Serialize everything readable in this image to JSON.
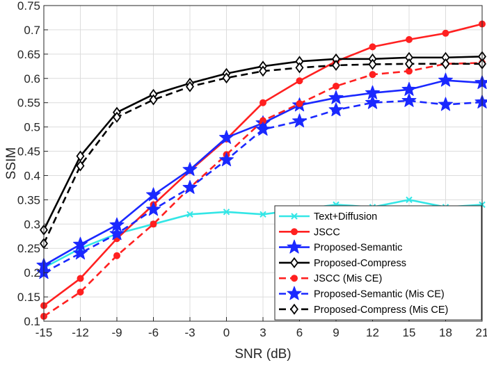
{
  "chart_data": {
    "type": "line",
    "title": "",
    "xlabel": "SNR (dB)",
    "ylabel": "SSIM",
    "xlim": [
      -15,
      21
    ],
    "ylim": [
      0.1,
      0.75
    ],
    "xticks": [
      -15,
      -12,
      -9,
      -6,
      -3,
      0,
      3,
      6,
      9,
      12,
      15,
      18,
      21
    ],
    "yticks": [
      0.1,
      0.15,
      0.2,
      0.25,
      0.3,
      0.35,
      0.4,
      0.45,
      0.5,
      0.55,
      0.6,
      0.65,
      0.7,
      0.75
    ],
    "xtick_labels": [
      "-15",
      "-12",
      "-9",
      "-6",
      "-3",
      "0",
      "3",
      "6",
      "9",
      "12",
      "15",
      "18",
      "21"
    ],
    "ytick_labels": [
      "0.1",
      "0.15",
      "0.2",
      "0.25",
      "0.3",
      "0.35",
      "0.4",
      "0.45",
      "0.5",
      "0.55",
      "0.6",
      "0.65",
      "0.7",
      "0.75"
    ],
    "grid": true,
    "legend_position": "bottom-right",
    "x": [
      -15,
      -12,
      -9,
      -6,
      -3,
      0,
      3,
      6,
      9,
      12,
      15,
      18,
      21
    ],
    "series": [
      {
        "name": "Text+Diffusion",
        "color": "#33e6e6",
        "dash": "solid",
        "marker": "x",
        "values": [
          0.21,
          0.25,
          0.28,
          0.3,
          0.32,
          0.325,
          0.32,
          0.33,
          0.34,
          0.335,
          0.35,
          0.335,
          0.34
        ]
      },
      {
        "name": "JSCC",
        "color": "#ff2020",
        "dash": "solid",
        "marker": "circle",
        "values": [
          0.132,
          0.188,
          0.27,
          0.34,
          0.41,
          0.475,
          0.55,
          0.595,
          0.635,
          0.665,
          0.68,
          0.693,
          0.712
        ]
      },
      {
        "name": "Proposed-Semantic",
        "color": "#1a28ff",
        "dash": "solid",
        "marker": "star",
        "values": [
          0.215,
          0.258,
          0.298,
          0.36,
          0.412,
          0.478,
          0.508,
          0.545,
          0.56,
          0.57,
          0.577,
          0.596,
          0.591
        ]
      },
      {
        "name": "Proposed-Compress",
        "color": "#000000",
        "dash": "solid",
        "marker": "diamond",
        "values": [
          0.288,
          0.44,
          0.53,
          0.567,
          0.59,
          0.61,
          0.625,
          0.635,
          0.64,
          0.64,
          0.643,
          0.643,
          0.645
        ]
      },
      {
        "name": "JSCC (Mis CE)",
        "color": "#ff2020",
        "dash": "dashed",
        "marker": "circle",
        "values": [
          0.11,
          0.16,
          0.235,
          0.3,
          0.375,
          0.443,
          0.513,
          0.548,
          0.584,
          0.608,
          0.615,
          0.63,
          0.632
        ]
      },
      {
        "name": "Proposed-Semantic (Mis CE)",
        "color": "#1a28ff",
        "dash": "dashed",
        "marker": "star",
        "values": [
          0.2,
          0.24,
          0.28,
          0.33,
          0.375,
          0.432,
          0.495,
          0.512,
          0.535,
          0.55,
          0.554,
          0.546,
          0.551
        ]
      },
      {
        "name": "Proposed-Compress (Mis CE)",
        "color": "#000000",
        "dash": "dashed",
        "marker": "diamond",
        "values": [
          0.26,
          0.42,
          0.52,
          0.556,
          0.583,
          0.601,
          0.615,
          0.622,
          0.627,
          0.629,
          0.63,
          0.63,
          0.63
        ]
      }
    ]
  }
}
